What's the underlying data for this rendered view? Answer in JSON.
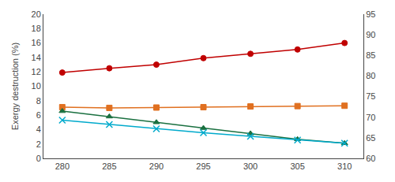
{
  "chart_data": {
    "type": "line",
    "ylabel": "Exergy destruction (%)",
    "x": [
      280,
      285,
      290,
      295,
      300,
      305,
      310
    ],
    "series": [
      {
        "color": "#c00000",
        "marker": "circle",
        "values": [
          11.9,
          12.5,
          13.0,
          13.9,
          14.5,
          15.1,
          16.0
        ]
      },
      {
        "color": "#e07020",
        "marker": "square",
        "values": [
          7.1,
          7.0,
          7.05,
          7.1,
          7.2,
          7.25,
          7.3
        ]
      },
      {
        "color": "#1a7040",
        "marker": "triangle",
        "values": [
          6.55,
          5.8,
          5.0,
          4.2,
          3.45,
          2.65,
          2.1
        ]
      },
      {
        "color": "#00aacc",
        "marker": "x",
        "values": [
          5.3,
          4.7,
          4.1,
          3.55,
          3.05,
          2.55,
          2.1
        ]
      }
    ],
    "xlim": [
      278,
      312
    ],
    "xticks": [
      280,
      285,
      290,
      295,
      300,
      305,
      310
    ],
    "ylim": [
      0,
      20
    ],
    "yticks": [
      0,
      2,
      4,
      6,
      8,
      10,
      12,
      14,
      16,
      18,
      20
    ],
    "y2lim": [
      60,
      95
    ],
    "y2ticks": [
      60,
      65,
      70,
      75,
      80,
      85,
      90,
      95
    ],
    "grid": false
  }
}
